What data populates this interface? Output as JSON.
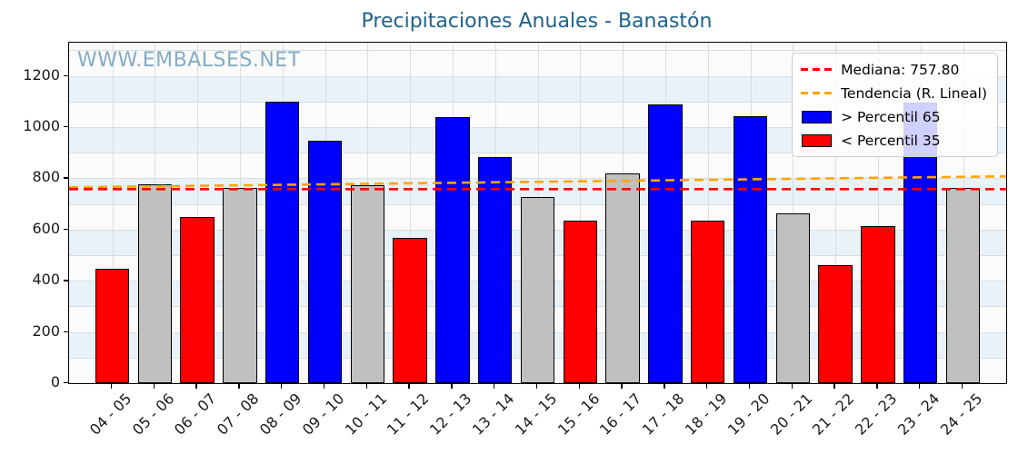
{
  "watermark": "WWW.EMBALSES.NET",
  "colors": {
    "title": "#1f618c",
    "watermark": "#84abc4",
    "band": "#e9f2f8",
    "grid": "#d8dde0",
    "above_percentile": "#0000ff",
    "mid_percentile": "#c0c0c0",
    "below_percentile": "#ff0000",
    "median_line": "#ff0000",
    "trend_line": "#ffa500"
  },
  "chart_data": {
    "type": "bar",
    "title": "Precipitaciones Anuales - Banastón",
    "xlabel": "",
    "ylabel": "",
    "categories": [
      "04 - 05",
      "05 - 06",
      "06 - 07",
      "07 - 08",
      "08 - 09",
      "09 - 10",
      "10 - 11",
      "11 - 12",
      "12 - 13",
      "13 - 14",
      "14 - 15",
      "15 - 16",
      "16 - 17",
      "17 - 18",
      "18 - 19",
      "19 - 20",
      "20 - 21",
      "21 - 22",
      "22 - 23",
      "23 - 24",
      "24 - 25"
    ],
    "values": [
      448,
      775,
      650,
      762,
      1098,
      946,
      774,
      568,
      1040,
      882,
      727,
      634,
      820,
      1090,
      634,
      1044,
      665,
      460,
      612,
      1096,
      764
    ],
    "classes": [
      "below",
      "mid",
      "below",
      "mid",
      "above",
      "above",
      "mid",
      "below",
      "above",
      "above",
      "mid",
      "below",
      "mid",
      "above",
      "below",
      "above",
      "mid",
      "below",
      "below",
      "above",
      "mid"
    ],
    "median": 757.8,
    "trend_linear": {
      "start_value": 765,
      "end_value": 808
    },
    "ylim": [
      0,
      1330
    ],
    "yticks": [
      0,
      200,
      400,
      600,
      800,
      1000,
      1200
    ],
    "grid": {
      "on": true,
      "minor_step": 100
    },
    "bands": [
      [
        100,
        200
      ],
      [
        300,
        400
      ],
      [
        500,
        600
      ],
      [
        700,
        800
      ],
      [
        900,
        1000
      ],
      [
        1100,
        1200
      ]
    ],
    "legend_position": "upper-right"
  },
  "legend": {
    "items": [
      {
        "swatch": "dash",
        "color": "#ff0000",
        "label": "Mediana: 757.80"
      },
      {
        "swatch": "dash",
        "color": "#ffa500",
        "label": "Tendencia (R. Lineal)"
      },
      {
        "swatch": "rect",
        "color": "#0000ff",
        "label": "> Percentil 65"
      },
      {
        "swatch": "rect",
        "color": "#ff0000",
        "label": "< Percentil 35"
      }
    ]
  }
}
